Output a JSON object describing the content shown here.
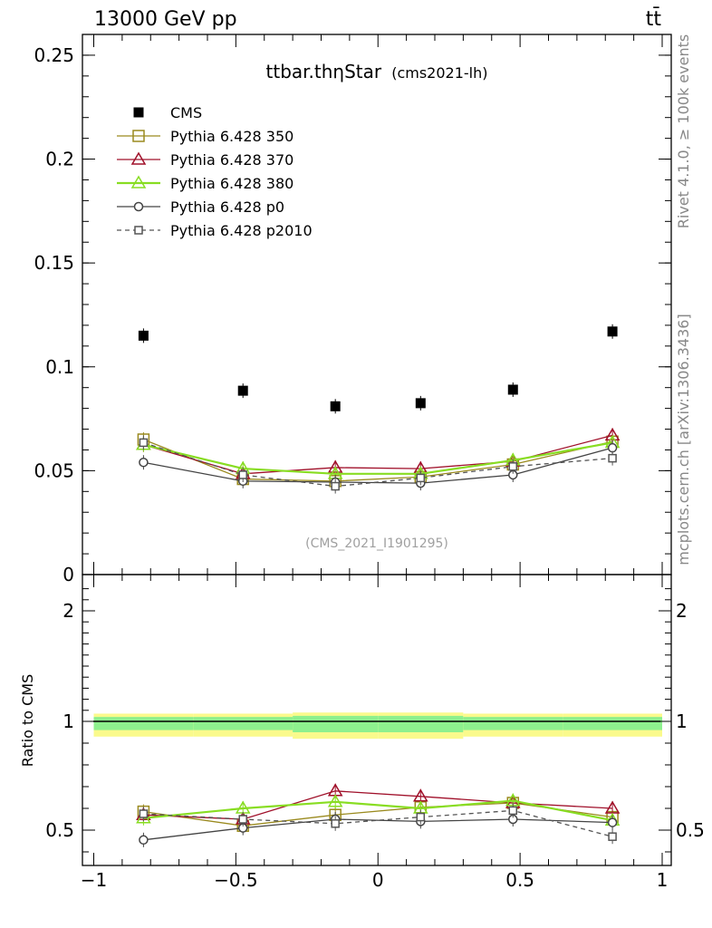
{
  "header": {
    "energy": "13000 GeV pp",
    "process": "tt̄"
  },
  "side_labels": {
    "rivet": "Rivet 4.1.0, ≥ 100k events",
    "site": "mcplots.cern.ch [arXiv:1306.3436]"
  },
  "chart_data": [
    {
      "type": "scatter",
      "title": "ttbar.thηStar",
      "subtitle": "(cms2021-lh)",
      "watermark": "(CMS_2021_I1901295)",
      "xlabel": "",
      "ylabel": "",
      "xlim": [
        -1.0,
        1.0
      ],
      "ylim": [
        0,
        0.26
      ],
      "x_tick_labels": [
        "−1",
        "−0.5",
        "0",
        "0.5",
        "1"
      ],
      "y_tick_values": [
        0,
        0.05,
        0.1,
        0.15,
        0.2,
        0.25
      ],
      "y_tick_labels": [
        "0",
        "0.05",
        "0.1",
        "0.15",
        "0.2",
        "0.25"
      ],
      "x": [
        -0.825,
        -0.475,
        -0.15,
        0.15,
        0.475,
        0.825
      ],
      "series": [
        {
          "name": "CMS",
          "color": "#000000",
          "marker": "filled-square",
          "line": "none",
          "values": [
            0.115,
            0.0885,
            0.081,
            0.0825,
            0.089,
            0.117
          ]
        },
        {
          "name": "Pythia 6.428 350",
          "color": "#9a8a1e",
          "marker": "open-square",
          "line": "solid",
          "values": [
            0.065,
            0.046,
            0.045,
            0.047,
            0.053,
            0.064
          ]
        },
        {
          "name": "Pythia 6.428 370",
          "color": "#a0102a",
          "marker": "open-triangle",
          "line": "solid",
          "values": [
            0.0625,
            0.0485,
            0.0515,
            0.051,
            0.0545,
            0.067
          ]
        },
        {
          "name": "Pythia 6.428 380",
          "color": "#88dd22",
          "marker": "open-triangle",
          "line": "solid",
          "values": [
            0.0625,
            0.051,
            0.0485,
            0.0485,
            0.055,
            0.0635
          ]
        },
        {
          "name": "Pythia 6.428 p0",
          "color": "#444444",
          "marker": "open-circle",
          "line": "solid",
          "values": [
            0.054,
            0.045,
            0.0445,
            0.044,
            0.048,
            0.061
          ]
        },
        {
          "name": "Pythia 6.428 p2010",
          "color": "#555555",
          "marker": "open-square-small",
          "line": "dashed",
          "values": [
            0.0635,
            0.048,
            0.0425,
            0.0465,
            0.052,
            0.056
          ]
        }
      ]
    },
    {
      "type": "scatter",
      "title": "",
      "ylabel": "Ratio to CMS",
      "xlim": [
        -1.0,
        1.0
      ],
      "ylim": [
        0.4,
        2.3
      ],
      "x_tick_labels": [
        "−1",
        "−0.5",
        "0",
        "0.5",
        "1"
      ],
      "y_tick_values": [
        0.5,
        1,
        2
      ],
      "y_tick_labels": [
        "0.5",
        "1",
        "2"
      ],
      "band": {
        "edges": [
          -1.0,
          -0.65,
          -0.3,
          0.0,
          0.3,
          0.65,
          1.0
        ],
        "stat_halfwidth": [
          0.04,
          0.04,
          0.05,
          0.05,
          0.04,
          0.04
        ],
        "total_halfwidth": [
          0.07,
          0.07,
          0.08,
          0.08,
          0.07,
          0.07
        ],
        "stat_color": "#8ef08e",
        "total_color": "#fafa8c"
      },
      "x": [
        -0.825,
        -0.475,
        -0.15,
        0.15,
        0.475,
        0.825
      ],
      "series": [
        {
          "name": "Pythia 6.428 350",
          "color": "#9a8a1e",
          "marker": "open-square",
          "line": "solid",
          "values": [
            0.585,
            0.52,
            0.57,
            0.605,
            0.625,
            0.56
          ]
        },
        {
          "name": "Pythia 6.428 370",
          "color": "#a0102a",
          "marker": "open-triangle",
          "line": "solid",
          "values": [
            0.57,
            0.55,
            0.68,
            0.655,
            0.625,
            0.6
          ]
        },
        {
          "name": "Pythia 6.428 380",
          "color": "#88dd22",
          "marker": "open-triangle",
          "line": "solid",
          "values": [
            0.555,
            0.6,
            0.63,
            0.6,
            0.635,
            0.545
          ]
        },
        {
          "name": "Pythia 6.428 p0",
          "color": "#444444",
          "marker": "open-circle",
          "line": "solid",
          "values": [
            0.455,
            0.51,
            0.55,
            0.54,
            0.55,
            0.535
          ]
        },
        {
          "name": "Pythia 6.428 p2010",
          "color": "#555555",
          "marker": "open-square-small",
          "line": "dashed",
          "values": [
            0.575,
            0.55,
            0.53,
            0.56,
            0.59,
            0.47
          ]
        }
      ]
    }
  ]
}
